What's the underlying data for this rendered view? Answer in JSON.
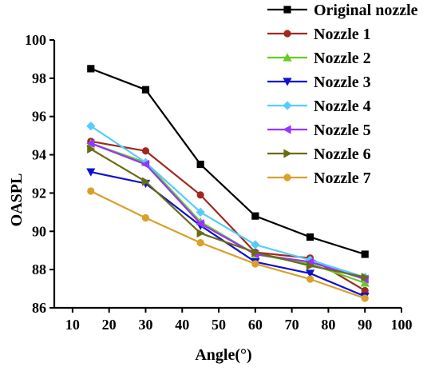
{
  "chart_data": {
    "type": "line",
    "xlabel": "Angle(°)",
    "ylabel": "OASPL",
    "xlim": [
      5,
      100
    ],
    "ylim": [
      86,
      100
    ],
    "xticks": [
      "10",
      "20",
      "30",
      "40",
      "50",
      "60",
      "70",
      "80",
      "90",
      "100"
    ],
    "yticks": [
      "86",
      "88",
      "90",
      "92",
      "94",
      "96",
      "98",
      "100"
    ],
    "x": [
      15,
      30,
      45,
      60,
      75,
      90
    ],
    "grid": false,
    "legend_position": "top-right",
    "series": [
      {
        "name": "Original nozzle",
        "color": "#000000",
        "marker": "square",
        "values": [
          98.5,
          97.4,
          93.5,
          90.8,
          89.7,
          88.8
        ]
      },
      {
        "name": "Nozzle 1",
        "color": "#a0291f",
        "marker": "circle",
        "values": [
          94.7,
          94.2,
          91.9,
          88.9,
          88.6,
          86.9
        ]
      },
      {
        "name": "Nozzle 2",
        "color": "#66cc22",
        "marker": "triangle-up",
        "values": [
          94.6,
          93.6,
          90.5,
          88.8,
          88.3,
          87.3
        ]
      },
      {
        "name": "Nozzle 3",
        "color": "#1010d0",
        "marker": "triangle-down",
        "values": [
          93.1,
          92.5,
          90.3,
          88.4,
          87.8,
          86.6
        ]
      },
      {
        "name": "Nozzle 4",
        "color": "#55ccff",
        "marker": "diamond",
        "values": [
          95.5,
          93.6,
          91.0,
          89.3,
          88.5,
          87.6
        ]
      },
      {
        "name": "Nozzle 5",
        "color": "#9933ff",
        "marker": "triangle-left",
        "values": [
          94.6,
          93.5,
          90.4,
          88.8,
          88.4,
          87.5
        ]
      },
      {
        "name": "Nozzle 6",
        "color": "#6b6b12",
        "marker": "triangle-right",
        "values": [
          94.3,
          92.6,
          89.9,
          88.9,
          88.2,
          87.6
        ]
      },
      {
        "name": "Nozzle 7",
        "color": "#d9a02a",
        "marker": "circle",
        "values": [
          92.1,
          90.7,
          89.4,
          88.3,
          87.5,
          86.5
        ]
      }
    ]
  }
}
